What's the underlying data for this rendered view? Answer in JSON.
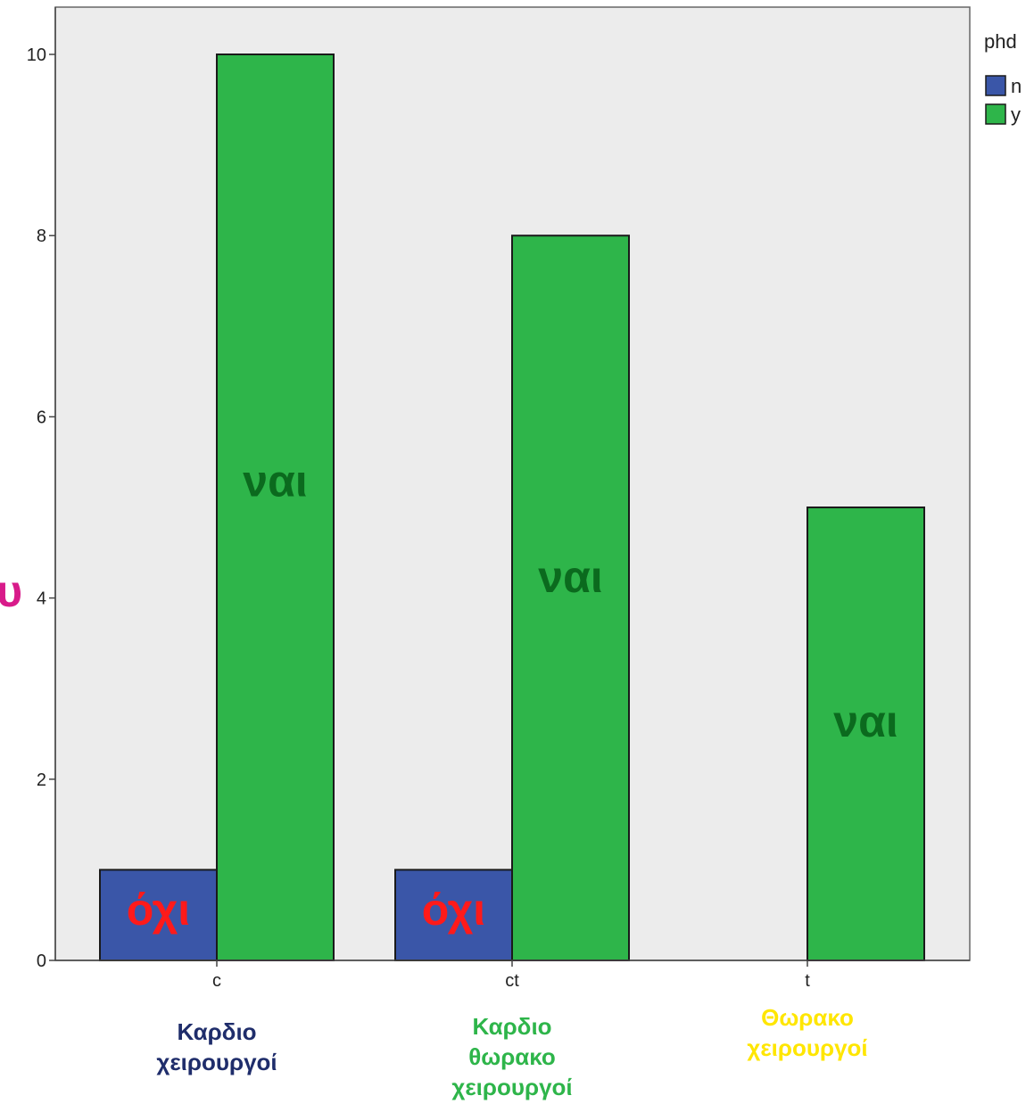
{
  "chart_data": {
    "type": "bar",
    "categories": [
      "c",
      "ct",
      "t"
    ],
    "series": [
      {
        "name": "n",
        "values": [
          1,
          1,
          0
        ],
        "color": "#3a56a8"
      },
      {
        "name": "y",
        "values": [
          10,
          8,
          5
        ],
        "color": "#2eb54a"
      }
    ],
    "ylim": [
      0,
      10.5
    ],
    "yticks": [
      "0",
      "2",
      "4",
      "6",
      "8",
      "10"
    ],
    "legend": {
      "title": "phd",
      "placement": "top-right"
    },
    "grid": false,
    "plot_background": "#ececec"
  },
  "annotations": {
    "bar_labels": [
      {
        "text": "όχι",
        "series": 0,
        "category": 0,
        "color": "#ff1a1a"
      },
      {
        "text": "ναι",
        "series": 1,
        "category": 0,
        "color": "#0b6a1e"
      },
      {
        "text": "όχι",
        "series": 0,
        "category": 1,
        "color": "#ff1a1a"
      },
      {
        "text": "ναι",
        "series": 1,
        "category": 1,
        "color": "#0b6a1e"
      },
      {
        "text": "ναι",
        "series": 1,
        "category": 2,
        "color": "#0b6a1e"
      }
    ],
    "group_notes": [
      {
        "lines": [
          "Καρδιο",
          "χειρουργοί"
        ],
        "color": "#1f2d6b"
      },
      {
        "lines": [
          "Καρδιο",
          "θωρακο",
          "χειρουργοί"
        ],
        "color": "#2eb54a"
      },
      {
        "lines": [
          "Θωρακο",
          "χειρουργοί"
        ],
        "color": "#ffe600"
      }
    ],
    "left_glyph": {
      "text": "υ",
      "color": "#d81b8a"
    }
  }
}
